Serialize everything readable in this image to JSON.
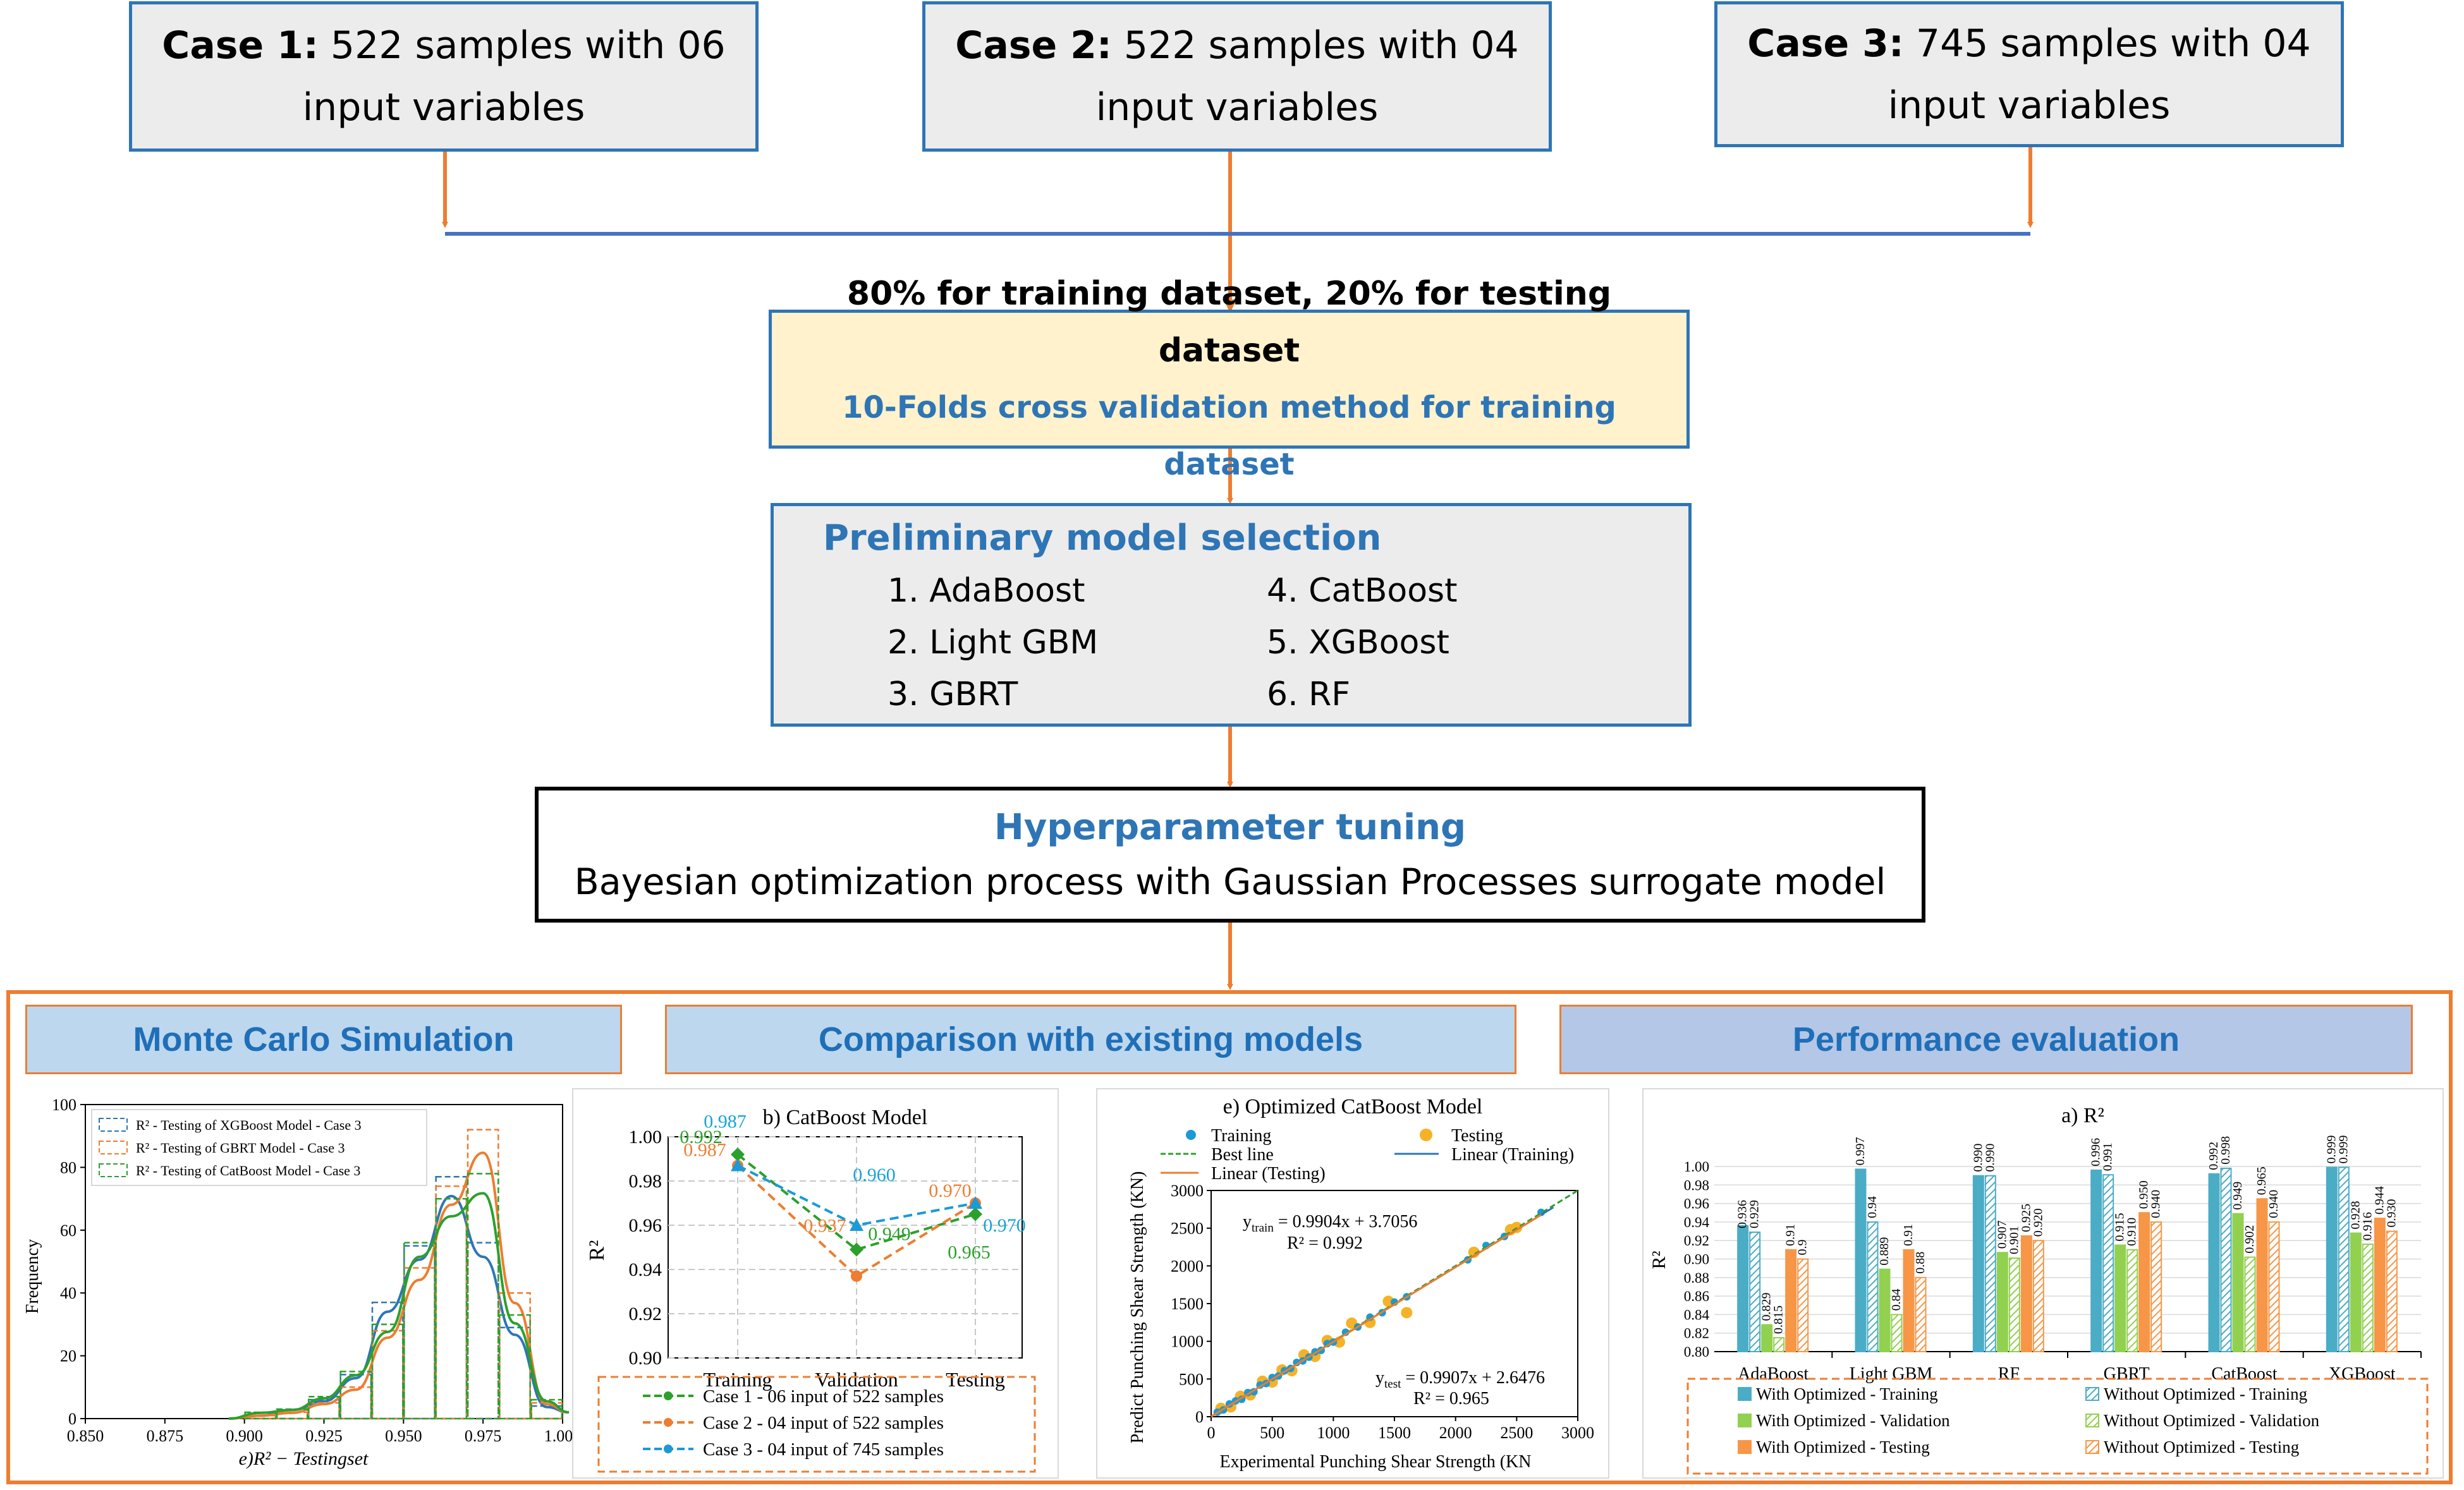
{
  "cases": [
    {
      "bold": "Case 1:",
      "line1": "522 samples with 06",
      "line2": "input variables"
    },
    {
      "bold": "Case 2:",
      "line1": "522 samples with 04",
      "line2": "input variables"
    },
    {
      "bold": "Case 3:",
      "line1": "745 samples with 04",
      "line2": "input variables"
    }
  ],
  "split": {
    "line1": "80% for training dataset, 20% for testing dataset",
    "line2": "10-Folds cross validation method for training dataset"
  },
  "prelim": {
    "title": "Preliminary model selection",
    "items": [
      "1. AdaBoost",
      "2. Light GBM",
      "3. GBRT",
      "4. CatBoost",
      "5. XGBoost",
      "6. RF"
    ]
  },
  "hyper": {
    "title": "Hyperparameter tuning",
    "subtitle": "Bayesian optimization process with Gaussian Processes surrogate model"
  },
  "sections": {
    "monte": "Monte Carlo Simulation",
    "comparison": "Comparison with existing models",
    "performance": "Performance evaluation"
  },
  "colors": {
    "blue": "#2e75b6",
    "orange": "#ed7d31",
    "green": "#2ca02c",
    "header1": "#bdd7ee",
    "header3": "#b4c7e7"
  },
  "chart_data": [
    {
      "type": "histogram",
      "xlabel": "e)R² − Testingset",
      "ylabel": "Frequency",
      "xlim": [
        0.85,
        1.0
      ],
      "ylim": [
        0,
        100
      ],
      "xticks": [
        "0.850",
        "0.875",
        "0.900",
        "0.925",
        "0.950",
        "0.975",
        "1.000"
      ],
      "yticks": [
        "0",
        "20",
        "40",
        "60",
        "80",
        "100"
      ],
      "legend": [
        "R² - Testing  of XGBoost Model - Case 3",
        "R² - Testing of GBRT Model - Case 3",
        "R² - Testing  of CatBoost Model - Case 3"
      ],
      "bins": [
        0.9,
        0.91,
        0.92,
        0.93,
        0.94,
        0.95,
        0.96,
        0.97,
        0.98,
        0.99
      ],
      "series": [
        {
          "name": "XGBoost",
          "values": [
            1,
            3,
            6,
            14,
            37,
            55,
            77,
            56,
            29,
            4
          ]
        },
        {
          "name": "GBRT",
          "values": [
            1,
            2,
            5,
            10,
            28,
            48,
            74,
            92,
            40,
            5
          ]
        },
        {
          "name": "CatBoost",
          "values": [
            2,
            3,
            7,
            15,
            30,
            56,
            70,
            78,
            33,
            6
          ]
        }
      ]
    },
    {
      "type": "line",
      "title": "b) CatBoost Model",
      "ylabel": "R²",
      "categories": [
        "Training",
        "Validation",
        "Testing"
      ],
      "ylim": [
        0.9,
        1.0
      ],
      "yticks": [
        "0.90",
        "0.92",
        "0.94",
        "0.96",
        "0.98",
        "1.00"
      ],
      "series": [
        {
          "name": "Case 1 - 06 input of 522 samples",
          "values": [
            0.992,
            0.949,
            0.965
          ],
          "labels": [
            "0.992",
            "0.949",
            "0.965"
          ]
        },
        {
          "name": "Case 2 - 04 input of 522 samples",
          "values": [
            0.987,
            0.937,
            0.97
          ],
          "labels": [
            "0.987",
            "0.937",
            "0.970"
          ]
        },
        {
          "name": "Case 3 - 04 input of 745 samples",
          "values": [
            0.987,
            0.96,
            0.97
          ],
          "labels": [
            "0.987",
            "0.960",
            "0.970"
          ]
        }
      ]
    },
    {
      "type": "scatter",
      "title": "e) Optimized  CatBoost Model",
      "xlabel": "Experimental Punching Shear Strength (KN",
      "ylabel": "Predict Punching Shear Strength (KN)",
      "xlim": [
        0,
        3000
      ],
      "ylim": [
        0,
        3000
      ],
      "ticks": [
        "0",
        "500",
        "1000",
        "1500",
        "2000",
        "2500",
        "3000"
      ],
      "legend": [
        "Training",
        "Testing",
        "Best line",
        "Linear (Training)",
        "Linear (Testing)"
      ],
      "eq_train": {
        "lhs": "y",
        "sub": "train",
        "rhs": " = 0.9904x + 3.7056",
        "r2": "R² = 0.992"
      },
      "eq_test": {
        "lhs": "y",
        "sub": "test",
        "rhs": " = 0.9907x + 2.6476",
        "r2": "R² = 0.965"
      },
      "train": [
        [
          50,
          60
        ],
        [
          100,
          90
        ],
        [
          150,
          170
        ],
        [
          200,
          210
        ],
        [
          250,
          230
        ],
        [
          300,
          320
        ],
        [
          350,
          330
        ],
        [
          400,
          420
        ],
        [
          450,
          440
        ],
        [
          500,
          520
        ],
        [
          550,
          540
        ],
        [
          600,
          610
        ],
        [
          650,
          640
        ],
        [
          700,
          720
        ],
        [
          750,
          740
        ],
        [
          800,
          790
        ],
        [
          850,
          860
        ],
        [
          900,
          880
        ],
        [
          950,
          970
        ],
        [
          1000,
          990
        ],
        [
          1100,
          1120
        ],
        [
          1200,
          1190
        ],
        [
          1300,
          1320
        ],
        [
          1400,
          1380
        ],
        [
          1500,
          1520
        ],
        [
          1600,
          1590
        ],
        [
          2100,
          2080
        ],
        [
          2250,
          2270
        ],
        [
          2400,
          2390
        ],
        [
          2700,
          2710
        ]
      ],
      "test": [
        [
          80,
          110
        ],
        [
          160,
          130
        ],
        [
          240,
          270
        ],
        [
          320,
          290
        ],
        [
          420,
          470
        ],
        [
          500,
          460
        ],
        [
          580,
          620
        ],
        [
          660,
          610
        ],
        [
          760,
          820
        ],
        [
          850,
          800
        ],
        [
          950,
          1010
        ],
        [
          1050,
          990
        ],
        [
          1150,
          1240
        ],
        [
          1300,
          1250
        ],
        [
          1450,
          1530
        ],
        [
          1600,
          1380
        ],
        [
          2150,
          2180
        ],
        [
          2450,
          2480
        ],
        [
          2500,
          2510
        ]
      ]
    },
    {
      "type": "bar",
      "title": "a) R²",
      "ylabel": "R²",
      "ylim": [
        0.8,
        1.0
      ],
      "yticks": [
        "0.80",
        "0.82",
        "0.84",
        "0.86",
        "0.88",
        "0.90",
        "0.92",
        "0.94",
        "0.96",
        "0.98",
        "1.00"
      ],
      "categories": [
        "AdaBoost",
        "Light GBM",
        "RF",
        "GBRT",
        "CatBoost",
        "XGBoost"
      ],
      "series": [
        {
          "name": "With Optimized - Training",
          "values": [
            0.936,
            0.997,
            0.99,
            0.996,
            0.992,
            0.999
          ],
          "labels": [
            "",
            "0.997",
            "0.990",
            "0.996",
            "0.992",
            "0.999"
          ]
        },
        {
          "name": "Without Optimized - Training",
          "values": [
            0.929,
            0.94,
            0.99,
            0.991,
            0.998,
            0.999
          ],
          "labels": [
            "0.936\n0.929",
            "0.94",
            "0.990",
            "0.991",
            "0.998",
            "0.999"
          ]
        },
        {
          "name": "With Optimized  - Validation",
          "values": [
            0.829,
            0.889,
            0.907,
            0.915,
            0.949,
            0.928
          ],
          "labels": [
            "0.829",
            "0.889",
            "0.907",
            "0.915",
            "0.949",
            "0.928"
          ]
        },
        {
          "name": "Without Optimized  - Validation",
          "values": [
            0.815,
            0.84,
            0.901,
            0.91,
            0.902,
            0.916
          ],
          "labels": [
            "0.815",
            "0.84",
            "0.901",
            "0.910",
            "0.902",
            "0.916"
          ]
        },
        {
          "name": "With Optimized  - Testing",
          "values": [
            0.91,
            0.91,
            0.925,
            0.95,
            0.965,
            0.944
          ],
          "labels": [
            "0.91",
            "0.91",
            "0.925",
            "0.950",
            "0.965",
            "0.944"
          ]
        },
        {
          "name": "Without Optimized  - Testing",
          "values": [
            0.9,
            0.88,
            0.92,
            0.94,
            0.94,
            0.93
          ],
          "labels": [
            "0.9",
            "0.88",
            "0.920",
            "0.940",
            "0.940",
            "0.930"
          ]
        }
      ]
    }
  ]
}
